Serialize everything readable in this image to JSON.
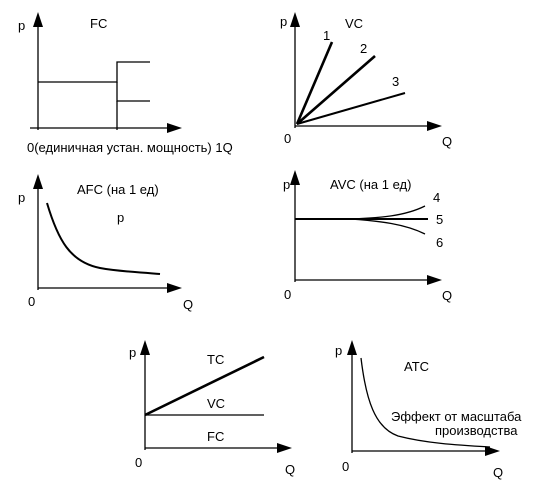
{
  "panels": {
    "fc": {
      "y_label": "p",
      "title": "FC",
      "x_label": "0(единичная устан. мощность) 1Q"
    },
    "vc": {
      "y_label": "p",
      "title": "VC",
      "origin": "0",
      "x_label": "Q",
      "line_labels": [
        "1",
        "2",
        "3"
      ]
    },
    "afc": {
      "y_label": "p",
      "title": "AFC (на 1 ед)",
      "inner_label": "p",
      "origin": "0",
      "x_label": "Q"
    },
    "avc": {
      "y_label": "p",
      "title": "AVC (на 1 ед)",
      "origin": "0",
      "x_label": "Q",
      "line_labels": [
        "4",
        "5",
        "6"
      ]
    },
    "tc": {
      "y_label": "p",
      "tc_label": "TC",
      "vc_label": "VC",
      "fc_label": "FC",
      "origin": "0",
      "x_label": "Q"
    },
    "atc": {
      "y_label": "p",
      "title": "ATC",
      "note_line1": "Эффект от масштаба",
      "note_line2": "производства",
      "origin": "0",
      "x_label": "Q"
    }
  }
}
